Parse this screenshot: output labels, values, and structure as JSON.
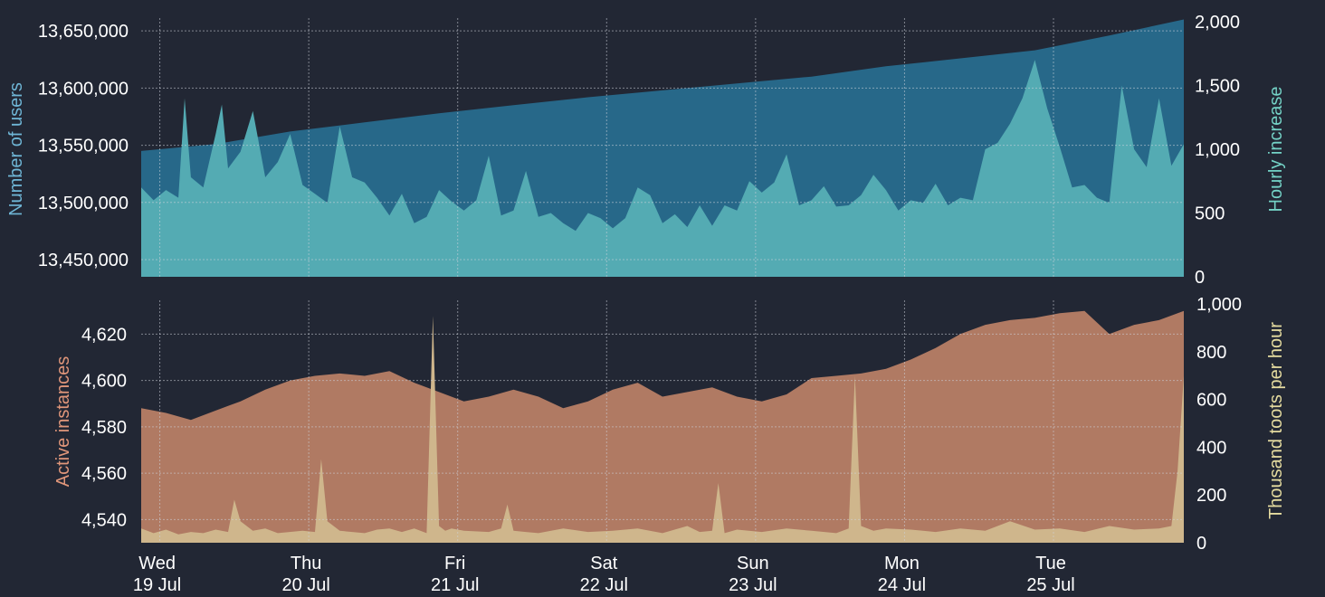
{
  "colors": {
    "background": "#222734",
    "users_area": "#276889",
    "hourly_area": "#54abb3",
    "instances_area": "#b07a63",
    "toots_area": "#cfb68c",
    "tick_text": "#ffffff",
    "users_label": "#6fb6d6",
    "hourly_label": "#74d2c6",
    "instances_label": "#e0967a",
    "toots_label": "#e6dca0",
    "grid": "#cfd3dc"
  },
  "chart_data": [
    {
      "type": "area",
      "ylabel": "Number of users",
      "ylabel_right": "Hourly increase",
      "ylim": [
        13435000,
        13658000
      ],
      "ylim_right": [
        0,
        2000
      ],
      "yticks": [
        "13,450,000",
        "13,500,000",
        "13,550,000",
        "13,600,000",
        "13,650,000"
      ],
      "yticks_right": [
        "0",
        "500",
        "1,000",
        "1,500",
        "2,000"
      ],
      "grid": true,
      "series": [
        {
          "name": "Number of users",
          "x_hours": [
            0,
            12,
            24,
            36,
            48,
            60,
            72,
            84,
            96,
            108,
            120,
            132,
            144,
            156,
            168
          ],
          "values": [
            13545000,
            13551000,
            13562000,
            13570000,
            13578000,
            13585000,
            13592000,
            13598000,
            13604000,
            13610000,
            13619000,
            13626000,
            13633000,
            13646000,
            13660000
          ]
        },
        {
          "name": "Hourly increase",
          "x_hours": [
            0,
            2,
            4,
            6,
            7,
            8,
            10,
            12,
            13,
            14,
            16,
            18,
            20,
            22,
            24,
            26,
            28,
            30,
            32,
            34,
            36,
            38,
            40,
            42,
            44,
            46,
            48,
            50,
            52,
            54,
            56,
            58,
            60,
            62,
            64,
            66,
            68,
            70,
            72,
            74,
            76,
            78,
            80,
            82,
            84,
            86,
            88,
            90,
            92,
            94,
            96,
            98,
            100,
            102,
            104,
            106,
            108,
            110,
            112,
            114,
            116,
            118,
            120,
            122,
            124,
            126,
            128,
            130,
            132,
            134,
            136,
            138,
            140,
            142,
            144,
            146,
            148,
            150,
            152,
            154,
            156,
            158,
            160,
            162,
            164,
            166,
            168
          ],
          "values": [
            700,
            600,
            680,
            620,
            1400,
            780,
            700,
            1120,
            1350,
            850,
            980,
            1300,
            780,
            900,
            1120,
            720,
            650,
            580,
            1180,
            780,
            740,
            620,
            480,
            650,
            420,
            470,
            680,
            590,
            520,
            600,
            950,
            480,
            520,
            830,
            470,
            500,
            420,
            360,
            500,
            460,
            380,
            460,
            700,
            640,
            420,
            490,
            390,
            560,
            400,
            560,
            520,
            750,
            660,
            740,
            960,
            560,
            600,
            710,
            550,
            560,
            640,
            800,
            680,
            520,
            600,
            580,
            730,
            560,
            620,
            600,
            1000,
            1050,
            1200,
            1400,
            1700,
            1320,
            1020,
            700,
            720,
            620,
            580,
            1500,
            1000,
            860,
            1400,
            870,
            1040
          ]
        }
      ]
    },
    {
      "type": "area",
      "ylabel": "Active instances",
      "ylabel_right": "Thousand toots per hour",
      "ylim": [
        4530,
        4633
      ],
      "ylim_right": [
        0,
        1000
      ],
      "yticks": [
        "4,540",
        "4,560",
        "4,580",
        "4,600",
        "4,620"
      ],
      "yticks_right": [
        "0",
        "200",
        "400",
        "600",
        "800",
        "1,000"
      ],
      "grid": true,
      "series": [
        {
          "name": "Active instances",
          "x_hours": [
            0,
            4,
            8,
            12,
            16,
            20,
            24,
            28,
            32,
            36,
            40,
            44,
            48,
            52,
            56,
            60,
            64,
            68,
            72,
            76,
            80,
            84,
            88,
            92,
            96,
            100,
            104,
            108,
            112,
            116,
            120,
            124,
            128,
            132,
            136,
            140,
            144,
            148,
            152,
            156,
            160,
            164,
            168
          ],
          "values": [
            4588,
            4586,
            4583,
            4587,
            4591,
            4596,
            4600,
            4602,
            4603,
            4602,
            4604,
            4599,
            4595,
            4591,
            4593,
            4596,
            4593,
            4588,
            4591,
            4596,
            4599,
            4593,
            4595,
            4597,
            4593,
            4591,
            4594,
            4601,
            4602,
            4603,
            4605,
            4609,
            4614,
            4620,
            4624,
            4626,
            4627,
            4629,
            4630,
            4620,
            4624,
            4626,
            4630
          ]
        },
        {
          "name": "Thousand toots per hour",
          "x_hours": [
            0,
            2,
            4,
            6,
            8,
            10,
            12,
            14,
            15,
            16,
            18,
            20,
            22,
            26,
            28,
            29,
            30,
            32,
            36,
            38,
            40,
            42,
            44,
            46,
            47,
            48,
            49,
            50,
            52,
            56,
            58,
            59,
            60,
            62,
            64,
            68,
            72,
            76,
            80,
            84,
            88,
            90,
            92,
            93,
            94,
            96,
            100,
            104,
            108,
            112,
            114,
            115,
            116,
            118,
            120,
            124,
            128,
            132,
            136,
            140,
            144,
            148,
            152,
            156,
            160,
            164,
            166,
            167,
            168
          ],
          "values": [
            60,
            40,
            55,
            35,
            45,
            40,
            55,
            45,
            180,
            90,
            50,
            60,
            40,
            50,
            45,
            350,
            90,
            50,
            40,
            55,
            60,
            45,
            60,
            40,
            950,
            70,
            50,
            60,
            50,
            45,
            60,
            160,
            50,
            45,
            40,
            60,
            45,
            50,
            60,
            40,
            70,
            45,
            50,
            250,
            40,
            55,
            45,
            60,
            50,
            40,
            60,
            700,
            70,
            50,
            60,
            55,
            45,
            60,
            50,
            90,
            55,
            60,
            45,
            70,
            55,
            60,
            70,
            300,
            700
          ]
        }
      ]
    }
  ],
  "x_axis": {
    "hour_range": [
      0,
      168
    ],
    "ticks": [
      {
        "hour": 3,
        "day": "Wed",
        "date": "19 Jul"
      },
      {
        "hour": 27,
        "day": "Thu",
        "date": "20 Jul"
      },
      {
        "hour": 51,
        "day": "Fri",
        "date": "21 Jul"
      },
      {
        "hour": 75,
        "day": "Sat",
        "date": "22 Jul"
      },
      {
        "hour": 99,
        "day": "Sun",
        "date": "23 Jul"
      },
      {
        "hour": 123,
        "day": "Mon",
        "date": "24 Jul"
      },
      {
        "hour": 147,
        "day": "Tue",
        "date": "25 Jul"
      }
    ]
  }
}
